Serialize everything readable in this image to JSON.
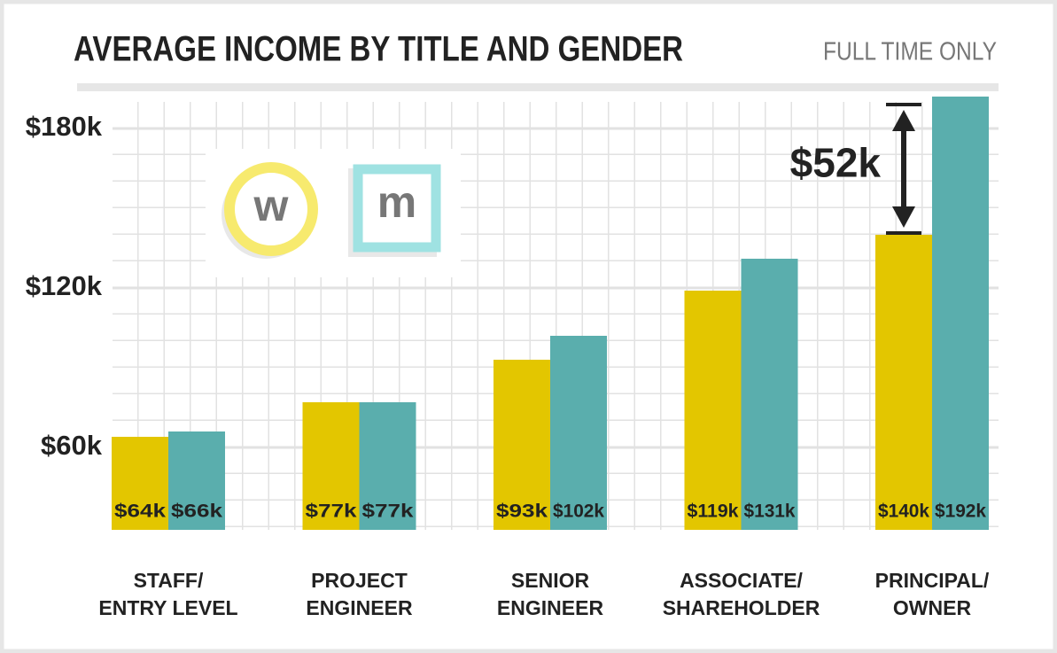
{
  "chart_data": {
    "type": "bar",
    "title": "AVERAGE INCOME BY TITLE AND GENDER",
    "subtitle": "FULL TIME ONLY",
    "categories": [
      "STAFF/\nENTRY LEVEL",
      "PROJECT\nENGINEER",
      "SENIOR\nENGINEER",
      "ASSOCIATE/\nSHAREHOLDER",
      "PRINCIPAL/\nOWNER"
    ],
    "series": [
      {
        "name": "w",
        "color": "#e3c600",
        "values": [
          64,
          77,
          93,
          119,
          140
        ],
        "value_labels": [
          "$64k",
          "$77k",
          "$93k",
          "$119k",
          "$140k"
        ]
      },
      {
        "name": "m",
        "color": "#5aaead",
        "values": [
          66,
          77,
          102,
          131,
          192
        ],
        "value_labels": [
          "$66k",
          "$77k",
          "$102k",
          "$131k",
          "$192k"
        ]
      }
    ],
    "ylim": [
      29,
      192
    ],
    "yticks": [
      {
        "value": 60,
        "label": "$60k"
      },
      {
        "value": 120,
        "label": "$120k"
      },
      {
        "value": 180,
        "label": "$180k"
      }
    ],
    "annotation": "$52k",
    "grid": true
  }
}
